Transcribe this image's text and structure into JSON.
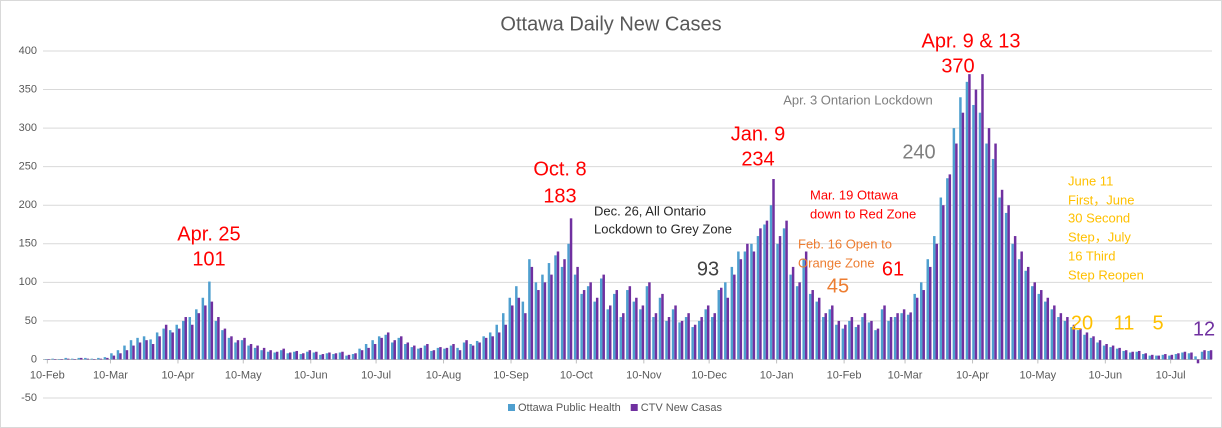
{
  "chart_data": {
    "type": "bar",
    "title": "Ottawa Daily New Cases",
    "xlim": [
      -2,
      535
    ],
    "xticks": [
      {
        "value": 0,
        "label": "10-Feb"
      },
      {
        "value": 29,
        "label": "10-Mar"
      },
      {
        "value": 60,
        "label": "10-Apr"
      },
      {
        "value": 90,
        "label": "10-May"
      },
      {
        "value": 121,
        "label": "10-Jun"
      },
      {
        "value": 151,
        "label": "10-Jul"
      },
      {
        "value": 182,
        "label": "10-Aug"
      },
      {
        "value": 213,
        "label": "10-Sep"
      },
      {
        "value": 243,
        "label": "10-Oct"
      },
      {
        "value": 274,
        "label": "10-Nov"
      },
      {
        "value": 304,
        "label": "10-Dec"
      },
      {
        "value": 335,
        "label": "10-Jan"
      },
      {
        "value": 366,
        "label": "10-Feb"
      },
      {
        "value": 394,
        "label": "10-Mar"
      },
      {
        "value": 425,
        "label": "10-Apr"
      },
      {
        "value": 455,
        "label": "10-May"
      },
      {
        "value": 486,
        "label": "10-Jun"
      },
      {
        "value": 516,
        "label": "10-Jul"
      }
    ],
    "ylim": [
      -50,
      400
    ],
    "yticks": [
      -50,
      0,
      50,
      100,
      150,
      200,
      250,
      300,
      350,
      400
    ],
    "grid": true,
    "legend": "bottom",
    "x": [
      0,
      3,
      6,
      9,
      12,
      15,
      18,
      21,
      24,
      27,
      30,
      33,
      36,
      39,
      42,
      45,
      48,
      51,
      54,
      57,
      60,
      63,
      66,
      69,
      72,
      75,
      78,
      81,
      84,
      87,
      90,
      93,
      96,
      99,
      102,
      105,
      108,
      111,
      114,
      117,
      120,
      123,
      126,
      129,
      132,
      135,
      138,
      141,
      144,
      147,
      150,
      153,
      156,
      159,
      162,
      165,
      168,
      171,
      174,
      177,
      180,
      183,
      186,
      189,
      192,
      195,
      198,
      201,
      204,
      207,
      210,
      213,
      216,
      219,
      222,
      225,
      228,
      231,
      234,
      237,
      240,
      243,
      246,
      249,
      252,
      255,
      258,
      261,
      264,
      267,
      270,
      273,
      276,
      279,
      282,
      285,
      288,
      291,
      294,
      297,
      300,
      303,
      306,
      309,
      312,
      315,
      318,
      321,
      324,
      327,
      330,
      333,
      336,
      339,
      342,
      345,
      348,
      351,
      354,
      357,
      360,
      363,
      366,
      369,
      372,
      375,
      378,
      381,
      384,
      387,
      390,
      393,
      396,
      399,
      402,
      405,
      408,
      411,
      414,
      417,
      420,
      423,
      426,
      429,
      432,
      435,
      438,
      441,
      444,
      447,
      450,
      453,
      456,
      459,
      462,
      465,
      468,
      471,
      474,
      477,
      480,
      483,
      486,
      489,
      492,
      495,
      498,
      501,
      504,
      507,
      510,
      513,
      516,
      519,
      522,
      525,
      528,
      531,
      534
    ],
    "series": [
      {
        "name": "Ottawa Public Health",
        "color": "#4f9fcf",
        "values": [
          0,
          1,
          0,
          2,
          1,
          2,
          2,
          1,
          2,
          3,
          8,
          12,
          18,
          25,
          28,
          30,
          26,
          35,
          40,
          38,
          45,
          50,
          55,
          65,
          80,
          101,
          50,
          38,
          28,
          22,
          25,
          18,
          15,
          12,
          10,
          9,
          12,
          8,
          10,
          7,
          10,
          9,
          6,
          8,
          7,
          9,
          5,
          7,
          14,
          20,
          25,
          30,
          32,
          22,
          28,
          20,
          16,
          14,
          18,
          11,
          15,
          14,
          18,
          15,
          22,
          20,
          24,
          30,
          35,
          45,
          60,
          80,
          95,
          75,
          130,
          100,
          110,
          125,
          135,
          120,
          150,
          110,
          85,
          95,
          75,
          105,
          65,
          85,
          55,
          90,
          75,
          65,
          95,
          55,
          80,
          50,
          65,
          48,
          55,
          42,
          50,
          65,
          55,
          90,
          100,
          120,
          140,
          140,
          150,
          160,
          175,
          200,
          150,
          170,
          110,
          95,
          130,
          85,
          75,
          55,
          65,
          45,
          40,
          50,
          42,
          55,
          48,
          38,
          65,
          50,
          55,
          60,
          58,
          85,
          100,
          130,
          160,
          210,
          235,
          300,
          340,
          360,
          330,
          320,
          280,
          260,
          210,
          190,
          150,
          130,
          115,
          95,
          85,
          75,
          65,
          55,
          50,
          42,
          38,
          32,
          28,
          22,
          18,
          16,
          14,
          11,
          9,
          10,
          7,
          5,
          5,
          6,
          5,
          7,
          9,
          8,
          4,
          10,
          11
        ]
      },
      {
        "name": "CTV New Casas",
        "color": "#7030a0",
        "values": [
          0,
          0,
          0,
          1,
          0,
          2,
          1,
          0,
          1,
          2,
          5,
          8,
          12,
          18,
          22,
          25,
          20,
          30,
          45,
          35,
          40,
          55,
          45,
          60,
          70,
          75,
          55,
          40,
          30,
          25,
          28,
          20,
          18,
          15,
          12,
          10,
          14,
          9,
          11,
          8,
          12,
          10,
          7,
          9,
          8,
          10,
          6,
          8,
          12,
          15,
          20,
          28,
          35,
          25,
          30,
          22,
          18,
          15,
          20,
          12,
          16,
          15,
          20,
          12,
          25,
          18,
          22,
          28,
          30,
          35,
          45,
          70,
          80,
          60,
          120,
          90,
          100,
          110,
          140,
          130,
          183,
          120,
          90,
          100,
          80,
          110,
          70,
          90,
          60,
          95,
          80,
          70,
          100,
          60,
          85,
          55,
          70,
          50,
          60,
          45,
          55,
          70,
          60,
          93,
          80,
          110,
          130,
          150,
          140,
          170,
          180,
          234,
          160,
          180,
          120,
          100,
          140,
          90,
          80,
          60,
          70,
          50,
          45,
          55,
          45,
          60,
          50,
          40,
          70,
          55,
          60,
          65,
          61,
          80,
          90,
          120,
          150,
          200,
          240,
          280,
          320,
          370,
          350,
          370,
          300,
          280,
          220,
          200,
          160,
          140,
          120,
          100,
          90,
          80,
          70,
          60,
          55,
          45,
          40,
          35,
          30,
          25,
          20,
          18,
          15,
          12,
          10,
          11,
          8,
          6,
          5,
          7,
          6,
          8,
          10,
          9,
          -5,
          12,
          12
        ]
      }
    ],
    "annotations": [
      {
        "text": "Apr. 25",
        "color": "#ff0000"
      },
      {
        "text": "101",
        "color": "#ff0000"
      },
      {
        "text": "Oct. 8",
        "color": "#ff0000"
      },
      {
        "text": "183",
        "color": "#ff0000"
      },
      {
        "text": "Dec. 26, All Ontario",
        "color": "#262626"
      },
      {
        "text": "Lockdown to Grey Zone",
        "color": "#262626"
      },
      {
        "text": "93",
        "color": "#404040"
      },
      {
        "text": "Jan. 9",
        "color": "#ff0000"
      },
      {
        "text": "234",
        "color": "#ff0000"
      },
      {
        "text": "Mar. 19 Ottawa",
        "color": "#ff0000"
      },
      {
        "text": "down to Red Zone",
        "color": "#ff0000"
      },
      {
        "text": "Feb. 16 Open to",
        "color": "#ed7d31"
      },
      {
        "text": "Orange Zone",
        "color": "#ed7d31"
      },
      {
        "text": "45",
        "color": "#ed7d31"
      },
      {
        "text": "61",
        "color": "#ff0000"
      },
      {
        "text": "240",
        "color": "#7f7f7f"
      },
      {
        "text": "Apr. 3 Ontarion Lockdown",
        "color": "#7f7f7f"
      },
      {
        "text": "Apr. 9 & 13",
        "color": "#ff0000"
      },
      {
        "text": "370",
        "color": "#ff0000"
      },
      {
        "text": "June 11",
        "color": "#ffc000"
      },
      {
        "text": "First，June",
        "color": "#ffc000"
      },
      {
        "text": "30 Second",
        "color": "#ffc000"
      },
      {
        "text": "Step，July",
        "color": "#ffc000"
      },
      {
        "text": "16 Third",
        "color": "#ffc000"
      },
      {
        "text": "Step Reopen",
        "color": "#ffc000"
      },
      {
        "text": "20",
        "color": "#ffc000"
      },
      {
        "text": "11",
        "color": "#ffc000"
      },
      {
        "text": "5",
        "color": "#ffc000"
      },
      {
        "text": "12",
        "color": "#7030a0"
      }
    ]
  }
}
